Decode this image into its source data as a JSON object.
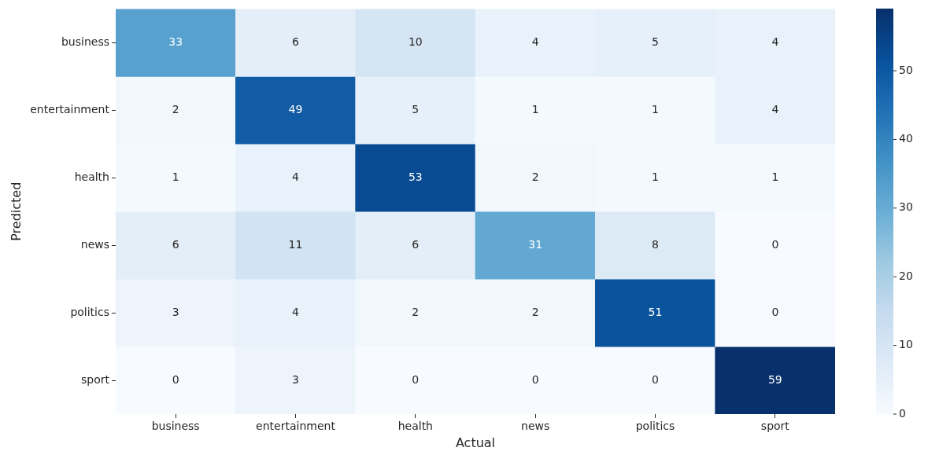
{
  "chart_data": {
    "type": "heatmap",
    "xlabel": "Actual",
    "ylabel": "Predicted",
    "categories": [
      "business",
      "entertainment",
      "health",
      "news",
      "politics",
      "sport"
    ],
    "y_categories": [
      "business",
      "entertainment",
      "health",
      "news",
      "politics",
      "sport"
    ],
    "cells": [
      [
        33,
        6,
        10,
        4,
        5,
        4
      ],
      [
        2,
        49,
        5,
        1,
        1,
        4
      ],
      [
        1,
        4,
        53,
        2,
        1,
        1
      ],
      [
        6,
        11,
        6,
        31,
        8,
        0
      ],
      [
        3,
        4,
        2,
        2,
        51,
        0
      ],
      [
        0,
        3,
        0,
        0,
        0,
        59
      ]
    ],
    "data_labels": true,
    "clim": [
      0,
      59
    ],
    "cticks": [
      0,
      10,
      20,
      30,
      40,
      50
    ]
  }
}
